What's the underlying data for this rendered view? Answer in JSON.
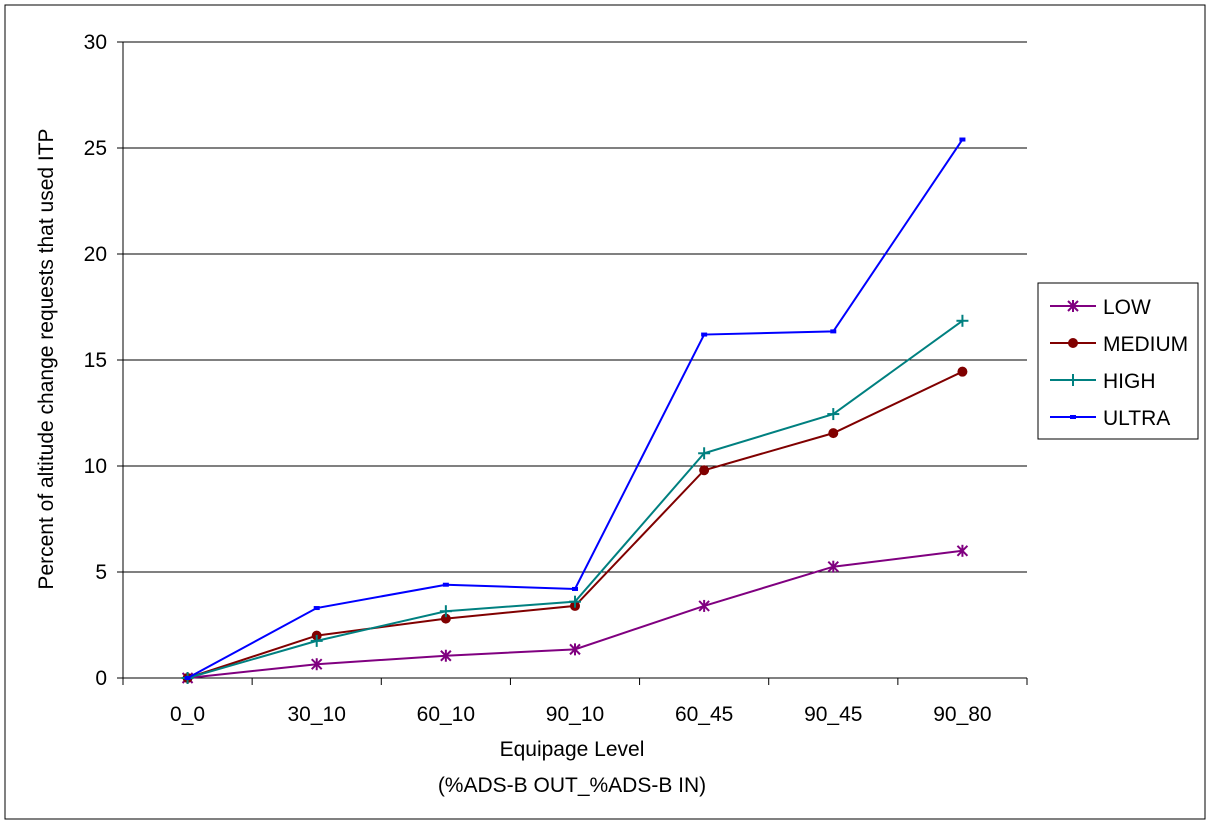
{
  "chart_data": {
    "type": "line",
    "title": "",
    "xlabel": "Equipage Level",
    "xlabel_sub": "(%ADS-B OUT_%ADS-B IN)",
    "ylabel": "Percent of altitude change requests that used ITP",
    "categories": [
      "0_0",
      "30_10",
      "60_10",
      "90_10",
      "60_45",
      "90_45",
      "90_80"
    ],
    "ylim": [
      0,
      30
    ],
    "yticks": [
      0,
      5,
      10,
      15,
      20,
      25,
      30
    ],
    "grid": "horizontal",
    "legend_position": "right",
    "series": [
      {
        "name": "LOW",
        "color": "#800080",
        "marker": "asterisk",
        "values": [
          0,
          0.65,
          1.05,
          1.35,
          3.4,
          5.25,
          6.0
        ]
      },
      {
        "name": "MEDIUM",
        "color": "#800000",
        "marker": "circle",
        "values": [
          0,
          2.0,
          2.8,
          3.4,
          9.8,
          11.55,
          14.45
        ]
      },
      {
        "name": "HIGH",
        "color": "#008080",
        "marker": "plus",
        "values": [
          0,
          1.75,
          3.15,
          3.6,
          10.6,
          12.45,
          16.85
        ]
      },
      {
        "name": "ULTRA",
        "color": "#0000ff",
        "marker": "dash",
        "values": [
          0,
          3.3,
          4.4,
          4.2,
          16.2,
          16.35,
          25.4
        ]
      }
    ]
  }
}
